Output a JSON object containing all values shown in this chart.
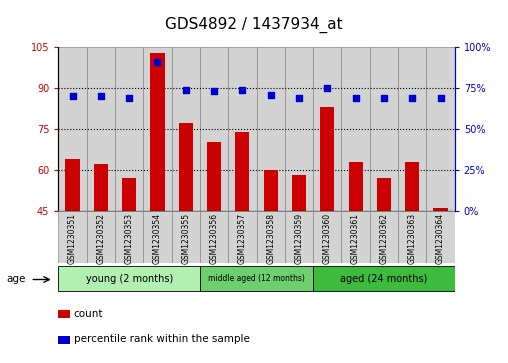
{
  "title": "GDS4892 / 1437934_at",
  "samples": [
    "GSM1230351",
    "GSM1230352",
    "GSM1230353",
    "GSM1230354",
    "GSM1230355",
    "GSM1230356",
    "GSM1230357",
    "GSM1230358",
    "GSM1230359",
    "GSM1230360",
    "GSM1230361",
    "GSM1230362",
    "GSM1230363",
    "GSM1230364"
  ],
  "counts": [
    64,
    62,
    57,
    103,
    77,
    70,
    74,
    60,
    58,
    83,
    63,
    57,
    63,
    46
  ],
  "percentile_ranks": [
    70,
    70,
    69,
    91,
    74,
    73,
    74,
    71,
    69,
    75,
    69,
    69,
    69,
    69
  ],
  "bar_color": "#cc0000",
  "dot_color": "#0000cc",
  "ylim_left": [
    45,
    105
  ],
  "ylim_right": [
    0,
    100
  ],
  "yticks_left": [
    45,
    60,
    75,
    90,
    105
  ],
  "yticks_right": [
    0,
    25,
    50,
    75,
    100
  ],
  "groups": [
    {
      "label": "young (2 months)",
      "start": 0,
      "end": 5
    },
    {
      "label": "middle aged (12 months)",
      "start": 5,
      "end": 9
    },
    {
      "label": "aged (24 months)",
      "start": 9,
      "end": 14
    }
  ],
  "group_colors": [
    "#b2f0b2",
    "#6ecf6e",
    "#3dbb3d"
  ],
  "age_label": "age",
  "legend_count_label": "count",
  "legend_pct_label": "percentile rank within the sample",
  "title_fontsize": 11,
  "tick_fontsize": 7,
  "background_color": "#ffffff",
  "grid_color": "#000000",
  "ytick_color_left": "#cc0000",
  "ytick_color_right": "#0000cc",
  "sample_bg_color": "#d3d3d3",
  "sample_border_color": "#888888"
}
